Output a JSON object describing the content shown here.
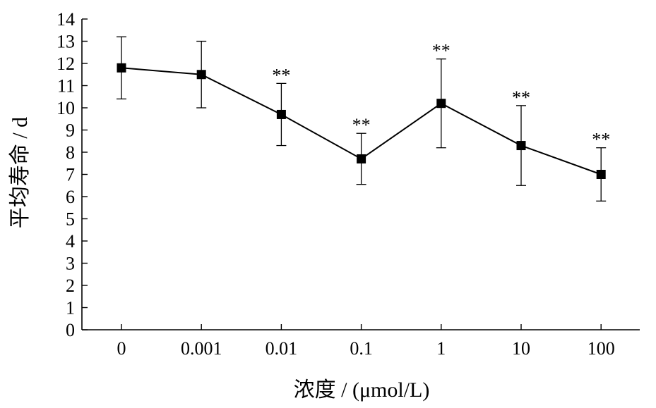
{
  "chart_data": {
    "type": "line",
    "title": "",
    "xlabel": "浓度 / (μmol/L)",
    "ylabel": "平均寿命 / d",
    "categories": [
      "0",
      "0.001",
      "0.01",
      "0.1",
      "1",
      "10",
      "100"
    ],
    "ylim": [
      0,
      14
    ],
    "yticks": [
      "0",
      "1",
      "2",
      "3",
      "4",
      "5",
      "6",
      "7",
      "8",
      "9",
      "10",
      "11",
      "12",
      "13",
      "14"
    ],
    "grid": false,
    "legend": "none",
    "series": [
      {
        "values": [
          11.8,
          11.5,
          9.7,
          7.7,
          10.2,
          8.3,
          7.0
        ],
        "error": [
          1.4,
          1.5,
          1.4,
          1.15,
          2.0,
          1.8,
          1.2
        ],
        "annotations": [
          "",
          "",
          "**",
          "**",
          "**",
          "**",
          "**"
        ]
      }
    ],
    "colors": {
      "line": "#000000",
      "marker": "#000000"
    }
  }
}
